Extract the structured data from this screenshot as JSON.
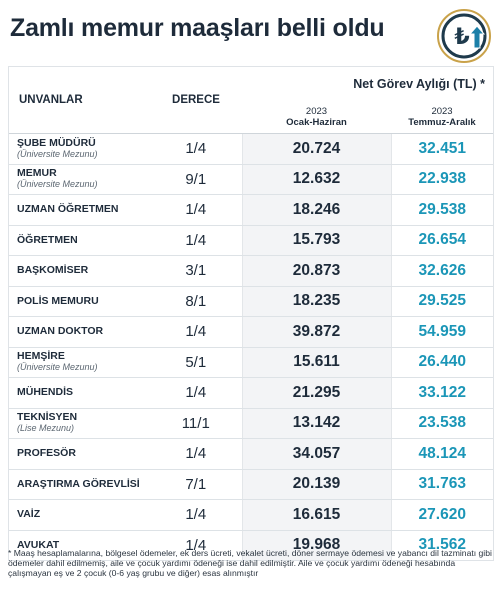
{
  "title": "Zamlı memur maaşları belli oldu",
  "logo": {
    "icon": "lira-up-arrow-icon",
    "symbol": "₺",
    "colors": {
      "ring": "#1e3a4c",
      "accent": "#c9a24a",
      "arrow": "#1b7fa8"
    }
  },
  "colors": {
    "new_values": "#1b96b7",
    "title": "#1e2b3a",
    "old_bg": "#f3f4f6"
  },
  "table": {
    "col_unvanlar": "UNVANLAR",
    "col_derece": "DERECE",
    "col_net": "Net Görev Aylığı (TL) *",
    "col_old_year": "2023",
    "col_old_period": "Ocak-Haziran",
    "col_new_year": "2023",
    "col_new_period": "Temmuz-Aralık",
    "rows": [
      {
        "title": "ŞUBE MÜDÜRÜ",
        "sub": "(Üniversite Mezunu)",
        "derece": "1/4",
        "old": "20.724",
        "new": "32.451"
      },
      {
        "title": "MEMUR",
        "sub": "(Üniversite Mezunu)",
        "derece": "9/1",
        "old": "12.632",
        "new": "22.938"
      },
      {
        "title": "UZMAN ÖĞRETMEN",
        "sub": "",
        "derece": "1/4",
        "old": "18.246",
        "new": "29.538"
      },
      {
        "title": "ÖĞRETMEN",
        "sub": "",
        "derece": "1/4",
        "old": "15.793",
        "new": "26.654"
      },
      {
        "title": "BAŞKOMİSER",
        "sub": "",
        "derece": "3/1",
        "old": "20.873",
        "new": "32.626"
      },
      {
        "title": "POLİS MEMURU",
        "sub": "",
        "derece": "8/1",
        "old": "18.235",
        "new": "29.525"
      },
      {
        "title": "UZMAN DOKTOR",
        "sub": "",
        "derece": "1/4",
        "old": "39.872",
        "new": "54.959"
      },
      {
        "title": "HEMŞİRE",
        "sub": "(Üniversite Mezunu)",
        "derece": "5/1",
        "old": "15.611",
        "new": "26.440"
      },
      {
        "title": "MÜHENDİS",
        "sub": "",
        "derece": "1/4",
        "old": "21.295",
        "new": "33.122"
      },
      {
        "title": "TEKNİSYEN",
        "sub": "(Lise Mezunu)",
        "derece": "11/1",
        "old": "13.142",
        "new": "23.538"
      },
      {
        "title": "PROFESÖR",
        "sub": "",
        "derece": "1/4",
        "old": "34.057",
        "new": "48.124"
      },
      {
        "title": "ARAŞTIRMA GÖREVLİSİ",
        "sub": "",
        "derece": "7/1",
        "old": "20.139",
        "new": "31.763"
      },
      {
        "title": "VAİZ",
        "sub": "",
        "derece": "1/4",
        "old": "16.615",
        "new": "27.620"
      },
      {
        "title": "AVUKAT",
        "sub": "",
        "derece": "1/4",
        "old": "19.968",
        "new": "31.562"
      }
    ]
  },
  "footnote": "* Maaş hesaplamalarına, bölgesel ödemeler, ek ders ücreti, vekalet ücreti, döner sermaye ödemesi ve yabancı dil tazminatı gibi ödemeler dahil edilmemiş, aile ve çocuk yardımı ödeneği ise dahil edilmiştir. Aile ve çocuk yardımı ödeneği hesabında çalışmayan eş ve 2 çocuk (0-6 yaş grubu ve diğer) esas alınmıştır"
}
